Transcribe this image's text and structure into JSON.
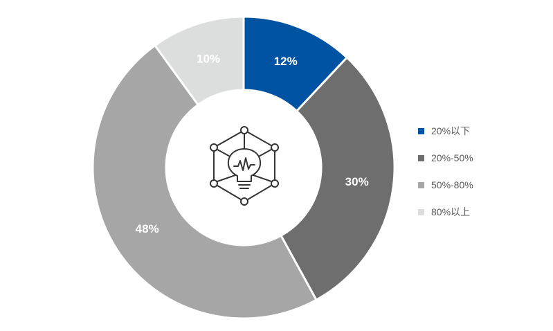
{
  "chart_data": {
    "type": "pie",
    "variant": "donut",
    "title": "",
    "categories": [
      "20%以下",
      "20%-50%",
      "50%-80%",
      "80%以上"
    ],
    "values": [
      12,
      30,
      48,
      10
    ],
    "value_labels": [
      "12%",
      "30%",
      "48%",
      "10%"
    ],
    "colors": [
      "#0052a3",
      "#6e6e6e",
      "#a5a6a5",
      "#dcdddd"
    ],
    "legend_position": "right",
    "center_icon": "lightbulb-network-icon"
  }
}
